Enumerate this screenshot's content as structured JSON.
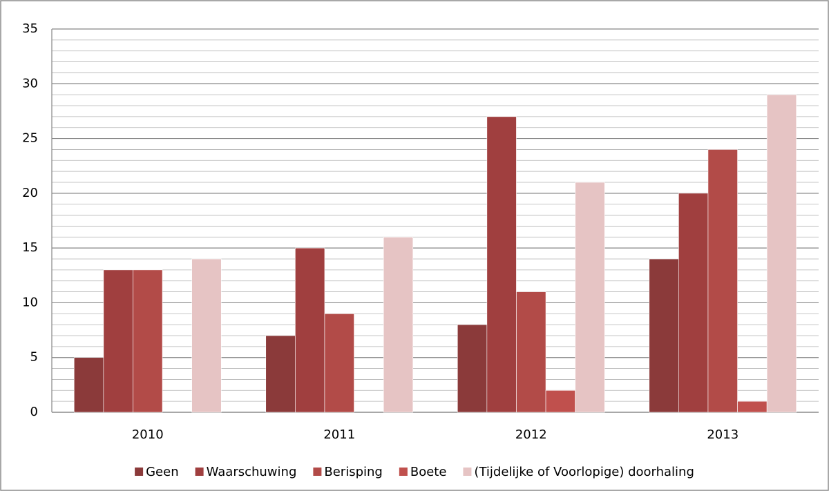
{
  "chart_data": {
    "type": "bar",
    "categories": [
      "2010",
      "2011",
      "2012",
      "2013"
    ],
    "series": [
      {
        "name": "Geen",
        "color": "#8b3a3a",
        "values": [
          5,
          7,
          8,
          14
        ]
      },
      {
        "name": "Waarschuwing",
        "color": "#a03f3f",
        "values": [
          13,
          15,
          27,
          20
        ]
      },
      {
        "name": "Berisping",
        "color": "#b24b48",
        "values": [
          13,
          9,
          11,
          24
        ]
      },
      {
        "name": "Boete",
        "color": "#c0504d",
        "values": [
          0,
          0,
          2,
          1
        ]
      },
      {
        "name": "(Tijdelijke of Voorlopige) doorhaling",
        "color": "#e6c4c4",
        "values": [
          14,
          16,
          21,
          29
        ]
      }
    ],
    "ylim": [
      0,
      35
    ],
    "yticks": [
      0,
      5,
      10,
      15,
      20,
      25,
      30,
      35
    ],
    "grid": true,
    "minor_grid_step": 1,
    "legend": "bottom"
  }
}
